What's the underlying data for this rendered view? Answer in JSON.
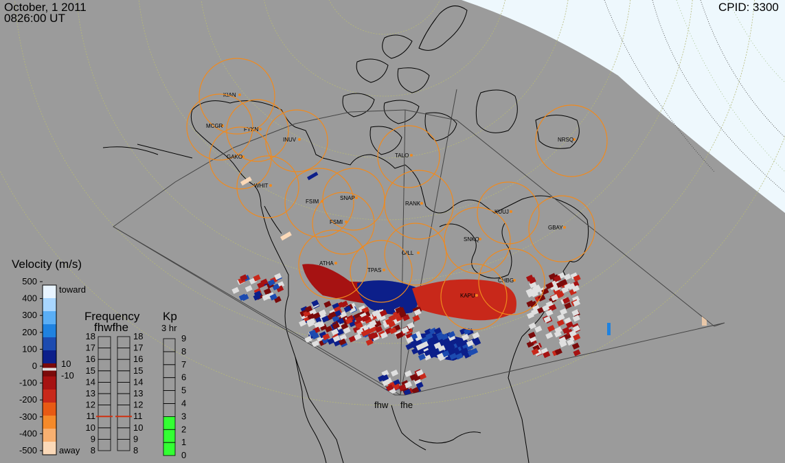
{
  "header": {
    "date": "October, 1 2011",
    "time": "0826:00 UT",
    "cpid": "CPID:  3300"
  },
  "radars": {
    "west": "fhw",
    "east": "fhe"
  },
  "sites": [
    {
      "code": "KIAN"
    },
    {
      "code": "MCGR"
    },
    {
      "code": "FYKN"
    },
    {
      "code": "INUV"
    },
    {
      "code": "GAKO"
    },
    {
      "code": "WHIT"
    },
    {
      "code": "FSIM"
    },
    {
      "code": "SNAP"
    },
    {
      "code": "FSMI"
    },
    {
      "code": "TALO"
    },
    {
      "code": "RANK"
    },
    {
      "code": "NRSQ"
    },
    {
      "code": "KUUJ"
    },
    {
      "code": "GBAY"
    },
    {
      "code": "SNKQ"
    },
    {
      "code": "ATHA"
    },
    {
      "code": "GILL"
    },
    {
      "code": "TPAS"
    },
    {
      "code": "CHBG"
    },
    {
      "code": "KAPU"
    }
  ],
  "velocity_scale": {
    "title": "Velocity (m/s)",
    "toward_label": "toward",
    "away_label": "away",
    "tick_labels": [
      "500",
      "400",
      "300",
      "200",
      "100",
      "0",
      "-100",
      "-200",
      "-300",
      "-400",
      "-500"
    ],
    "small_labels": [
      "10",
      "-10"
    ],
    "colors": [
      "#e8f4ff",
      "#a8d6ff",
      "#5aaef5",
      "#1f82e0",
      "#1c4bb0",
      "#0c1f8a",
      "#7a0a0a",
      "#a61212",
      "#c8281a",
      "#e85a14",
      "#f58a2a",
      "#f8b070",
      "#fbd9b8"
    ]
  },
  "frequency_scale": {
    "title": "Frequency",
    "columns": "fhwfhe",
    "labels": [
      "18",
      "17",
      "16",
      "15",
      "14",
      "13",
      "12",
      "11",
      "10",
      "9",
      "8"
    ],
    "value_fhw_mhz": 11,
    "value_fhe_mhz": 11,
    "marker_color": "#d03010"
  },
  "kp_scale": {
    "title": "Kp",
    "subtitle": "3 hr",
    "labels": [
      "9",
      "8",
      "7",
      "6",
      "5",
      "4",
      "3",
      "2",
      "1",
      "0"
    ],
    "value": 3,
    "fill_color": "#33ff33"
  }
}
